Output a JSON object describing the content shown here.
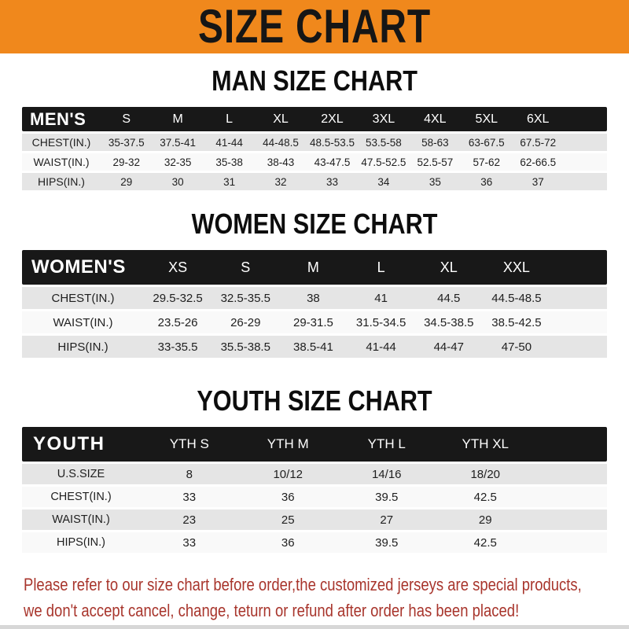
{
  "banner": {
    "title": "SIZE CHART"
  },
  "colors": {
    "banner_bg": "#F0881C",
    "table_header_bg": "#181818",
    "row_gray": "#E5E5E5",
    "row_white": "#F9F9F9",
    "note_text": "#A8352C"
  },
  "men": {
    "heading": "MAN SIZE CHART",
    "label": "MEN'S",
    "sizes": [
      "S",
      "M",
      "L",
      "XL",
      "2XL",
      "3XL",
      "4XL",
      "5XL",
      "6XL"
    ],
    "rows": [
      {
        "label": "CHEST(IN.)",
        "values": [
          "35-37.5",
          "37.5-41",
          "41-44",
          "44-48.5",
          "48.5-53.5",
          "53.5-58",
          "58-63",
          "63-67.5",
          "67.5-72"
        ]
      },
      {
        "label": "WAIST(IN.)",
        "values": [
          "29-32",
          "32-35",
          "35-38",
          "38-43",
          "43-47.5",
          "47.5-52.5",
          "52.5-57",
          "57-62",
          "62-66.5"
        ]
      },
      {
        "label": "HIPS(IN.)",
        "values": [
          "29",
          "30",
          "31",
          "32",
          "33",
          "34",
          "35",
          "36",
          "37"
        ]
      }
    ]
  },
  "women": {
    "heading": "WOMEN SIZE CHART",
    "label": "WOMEN'S",
    "sizes": [
      "XS",
      "S",
      "M",
      "L",
      "XL",
      "XXL"
    ],
    "rows": [
      {
        "label": "CHEST(IN.)",
        "values": [
          "29.5-32.5",
          "32.5-35.5",
          "38",
          "41",
          "44.5",
          "44.5-48.5"
        ]
      },
      {
        "label": "WAIST(IN.)",
        "values": [
          "23.5-26",
          "26-29",
          "29-31.5",
          "31.5-34.5",
          "34.5-38.5",
          "38.5-42.5"
        ]
      },
      {
        "label": "HIPS(IN.)",
        "values": [
          "33-35.5",
          "35.5-38.5",
          "38.5-41",
          "41-44",
          "44-47",
          "47-50"
        ]
      }
    ]
  },
  "youth": {
    "heading": "YOUTH SIZE CHART",
    "label": "YOUTH",
    "sizes": [
      "YTH S",
      "YTH M",
      "YTH L",
      "YTH XL"
    ],
    "rows": [
      {
        "label": "U.S.SIZE",
        "values": [
          "8",
          "10/12",
          "14/16",
          "18/20"
        ]
      },
      {
        "label": "CHEST(IN.)",
        "values": [
          "33",
          "36",
          "39.5",
          "42.5"
        ]
      },
      {
        "label": "WAIST(IN.)",
        "values": [
          "23",
          "25",
          "27",
          "29"
        ]
      },
      {
        "label": "HIPS(IN.)",
        "values": [
          "33",
          "36",
          "39.5",
          "42.5"
        ]
      }
    ]
  },
  "note": {
    "line1": "Please refer to our size chart before order,the customized jerseys are special products,",
    "line2": "we don't accept cancel, change, teturn or refund after order has been placed!"
  }
}
